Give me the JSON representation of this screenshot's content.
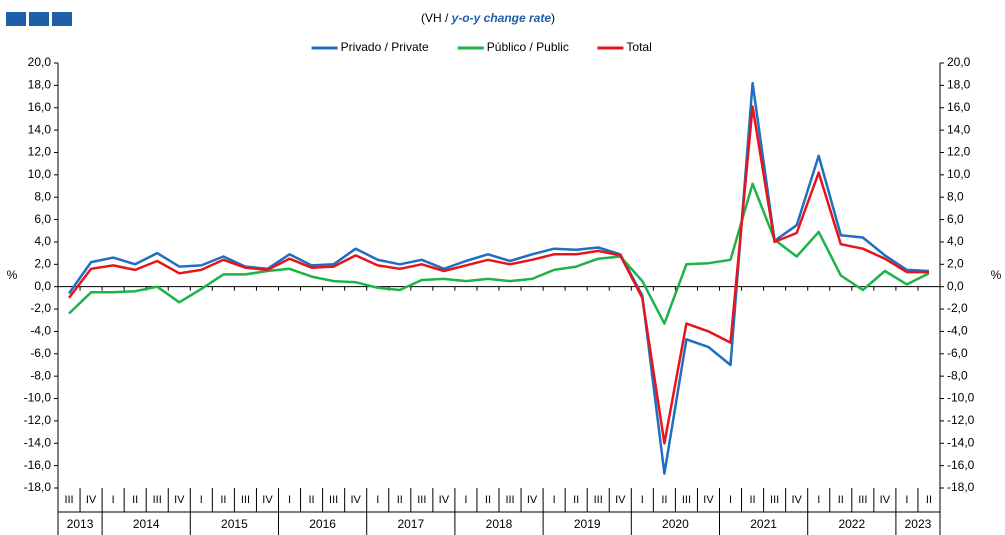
{
  "chart_data": {
    "type": "line",
    "subtitle": [
      "(VH / ",
      "y-o-y change rate",
      ")"
    ],
    "ylabel": "%",
    "categories": [
      "III",
      "IV",
      "I",
      "II",
      "III",
      "IV",
      "I",
      "II",
      "III",
      "IV",
      "I",
      "II",
      "III",
      "IV",
      "I",
      "II",
      "III",
      "IV",
      "I",
      "II",
      "III",
      "IV",
      "I",
      "II",
      "III",
      "IV",
      "I",
      "II",
      "III",
      "IV",
      "I",
      "II",
      "III",
      "IV",
      "I",
      "II",
      "III",
      "IV",
      "I",
      "II"
    ],
    "years": [
      "2013",
      "2014",
      "2015",
      "2016",
      "2017",
      "2018",
      "2019",
      "2020",
      "2021",
      "2022",
      "2023"
    ],
    "ylim": [
      -18,
      20
    ],
    "yticks": [
      {
        "value": 20,
        "label": "20,0"
      },
      {
        "value": 18,
        "label": "18,0"
      },
      {
        "value": 16,
        "label": "16,0"
      },
      {
        "value": 14,
        "label": "14,0"
      },
      {
        "value": 12,
        "label": "12,0"
      },
      {
        "value": 10,
        "label": "10,0"
      },
      {
        "value": 8,
        "label": "8,0"
      },
      {
        "value": 6,
        "label": "6,0"
      },
      {
        "value": 4,
        "label": "4,0"
      },
      {
        "value": 2,
        "label": "2,0"
      },
      {
        "value": 0,
        "label": "0,0"
      },
      {
        "value": -2,
        "label": "-2,0"
      },
      {
        "value": -4,
        "label": "-4,0"
      },
      {
        "value": -6,
        "label": "-6,0"
      },
      {
        "value": -8,
        "label": "-8,0"
      },
      {
        "value": -10,
        "label": "-10,0"
      },
      {
        "value": -12,
        "label": "-12,0"
      },
      {
        "value": -14,
        "label": "-14,0"
      },
      {
        "value": -16,
        "label": "-16,0"
      },
      {
        "value": -18,
        "label": "-18,0"
      }
    ],
    "series": [
      {
        "name": "Privado / Private",
        "color": "#1f6fc1",
        "values": [
          -0.6,
          2.2,
          2.6,
          2.0,
          3.0,
          1.8,
          1.9,
          2.7,
          1.8,
          1.6,
          2.9,
          1.9,
          2.0,
          3.4,
          2.4,
          2.0,
          2.4,
          1.6,
          2.3,
          2.9,
          2.3,
          2.9,
          3.4,
          3.3,
          3.5,
          2.9,
          -0.8,
          -16.7,
          -4.7,
          -5.4,
          -7.0,
          18.2,
          4.1,
          5.5,
          11.7,
          4.6,
          4.4,
          2.8,
          1.5,
          1.4
        ]
      },
      {
        "name": "Público / Public",
        "color": "#1db34a",
        "values": [
          -2.4,
          -0.5,
          -0.5,
          -0.4,
          0.0,
          -1.4,
          -0.2,
          1.1,
          1.1,
          1.4,
          1.6,
          0.9,
          0.5,
          0.4,
          -0.1,
          -0.3,
          0.6,
          0.7,
          0.5,
          0.7,
          0.5,
          0.7,
          1.5,
          1.8,
          2.5,
          2.7,
          0.5,
          -3.3,
          2.0,
          2.1,
          2.4,
          9.2,
          4.2,
          2.7,
          4.9,
          1.0,
          -0.3,
          1.4,
          0.2,
          1.2
        ]
      },
      {
        "name": "Total",
        "color": "#e8141c",
        "values": [
          -1.0,
          1.6,
          1.9,
          1.5,
          2.3,
          1.2,
          1.5,
          2.4,
          1.7,
          1.5,
          2.5,
          1.7,
          1.8,
          2.8,
          1.9,
          1.6,
          2.0,
          1.4,
          1.9,
          2.4,
          2.0,
          2.4,
          2.9,
          2.9,
          3.2,
          2.8,
          -1.0,
          -14.0,
          -3.3,
          -4.0,
          -5.0,
          16.1,
          4.0,
          4.8,
          10.2,
          3.8,
          3.4,
          2.5,
          1.3,
          1.3
        ]
      }
    ]
  }
}
